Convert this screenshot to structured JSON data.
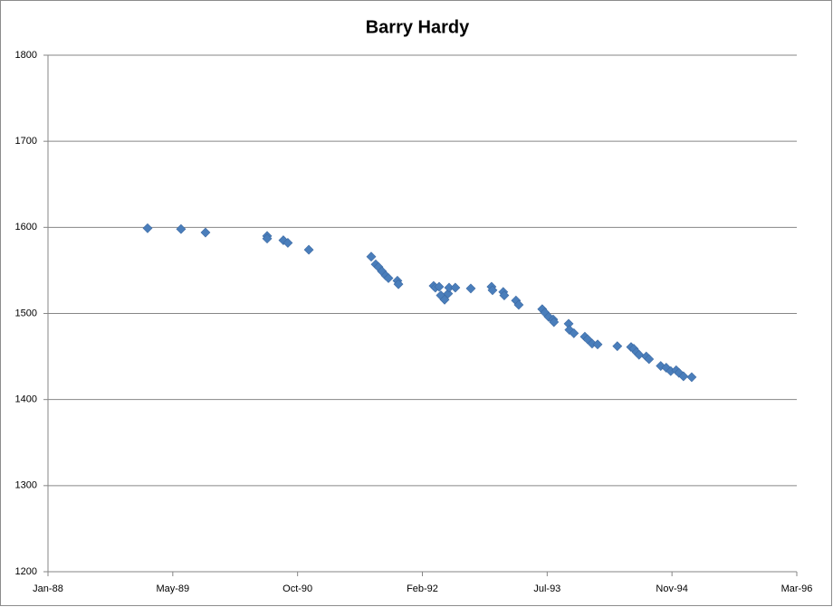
{
  "chart_data": {
    "type": "scatter",
    "title": "Barry Hardy",
    "x": [
      32549,
      32683,
      32781,
      33028,
      33028,
      33093,
      33111,
      33195,
      33445,
      33463,
      33474,
      33488,
      33503,
      33514,
      33550,
      33554,
      33695,
      33702,
      33717,
      33724,
      33739,
      33753,
      33757,
      33782,
      33844,
      33927,
      33931,
      33974,
      33978,
      34025,
      34036,
      34130,
      34141,
      34156,
      34174,
      34177,
      34236,
      34239,
      34257,
      34301,
      34312,
      34330,
      34352,
      34431,
      34486,
      34497,
      34508,
      34518,
      34547,
      34558,
      34605,
      34627,
      34645,
      34667,
      34678,
      34696,
      34729
    ],
    "values": [
      1599,
      1598,
      1594,
      1590,
      1587,
      1585,
      1582,
      1574,
      1566,
      1557,
      1554,
      1549,
      1544,
      1541,
      1538,
      1534,
      1532,
      1530,
      1531,
      1521,
      1516,
      1523,
      1530,
      1530,
      1529,
      1531,
      1527,
      1525,
      1521,
      1515,
      1510,
      1505,
      1501,
      1496,
      1493,
      1490,
      1488,
      1481,
      1477,
      1473,
      1470,
      1465,
      1464,
      1462,
      1461,
      1459,
      1455,
      1452,
      1450,
      1447,
      1439,
      1437,
      1433,
      1434,
      1431,
      1427,
      1426
    ],
    "color": "#4a7ebb",
    "xlim": [
      32150,
      35150
    ],
    "xticks": [
      {
        "value": 32150,
        "label": "Jan-88"
      },
      {
        "value": 32650,
        "label": "May-89"
      },
      {
        "value": 33150,
        "label": "Oct-90"
      },
      {
        "value": 33650,
        "label": "Feb-92"
      },
      {
        "value": 34150,
        "label": "Jul-93"
      },
      {
        "value": 34650,
        "label": "Nov-94"
      },
      {
        "value": 35150,
        "label": "Mar-96"
      }
    ],
    "ylim": [
      1200,
      1800
    ],
    "yticks": [
      1200,
      1300,
      1400,
      1500,
      1600,
      1700,
      1800
    ],
    "grid": true
  }
}
